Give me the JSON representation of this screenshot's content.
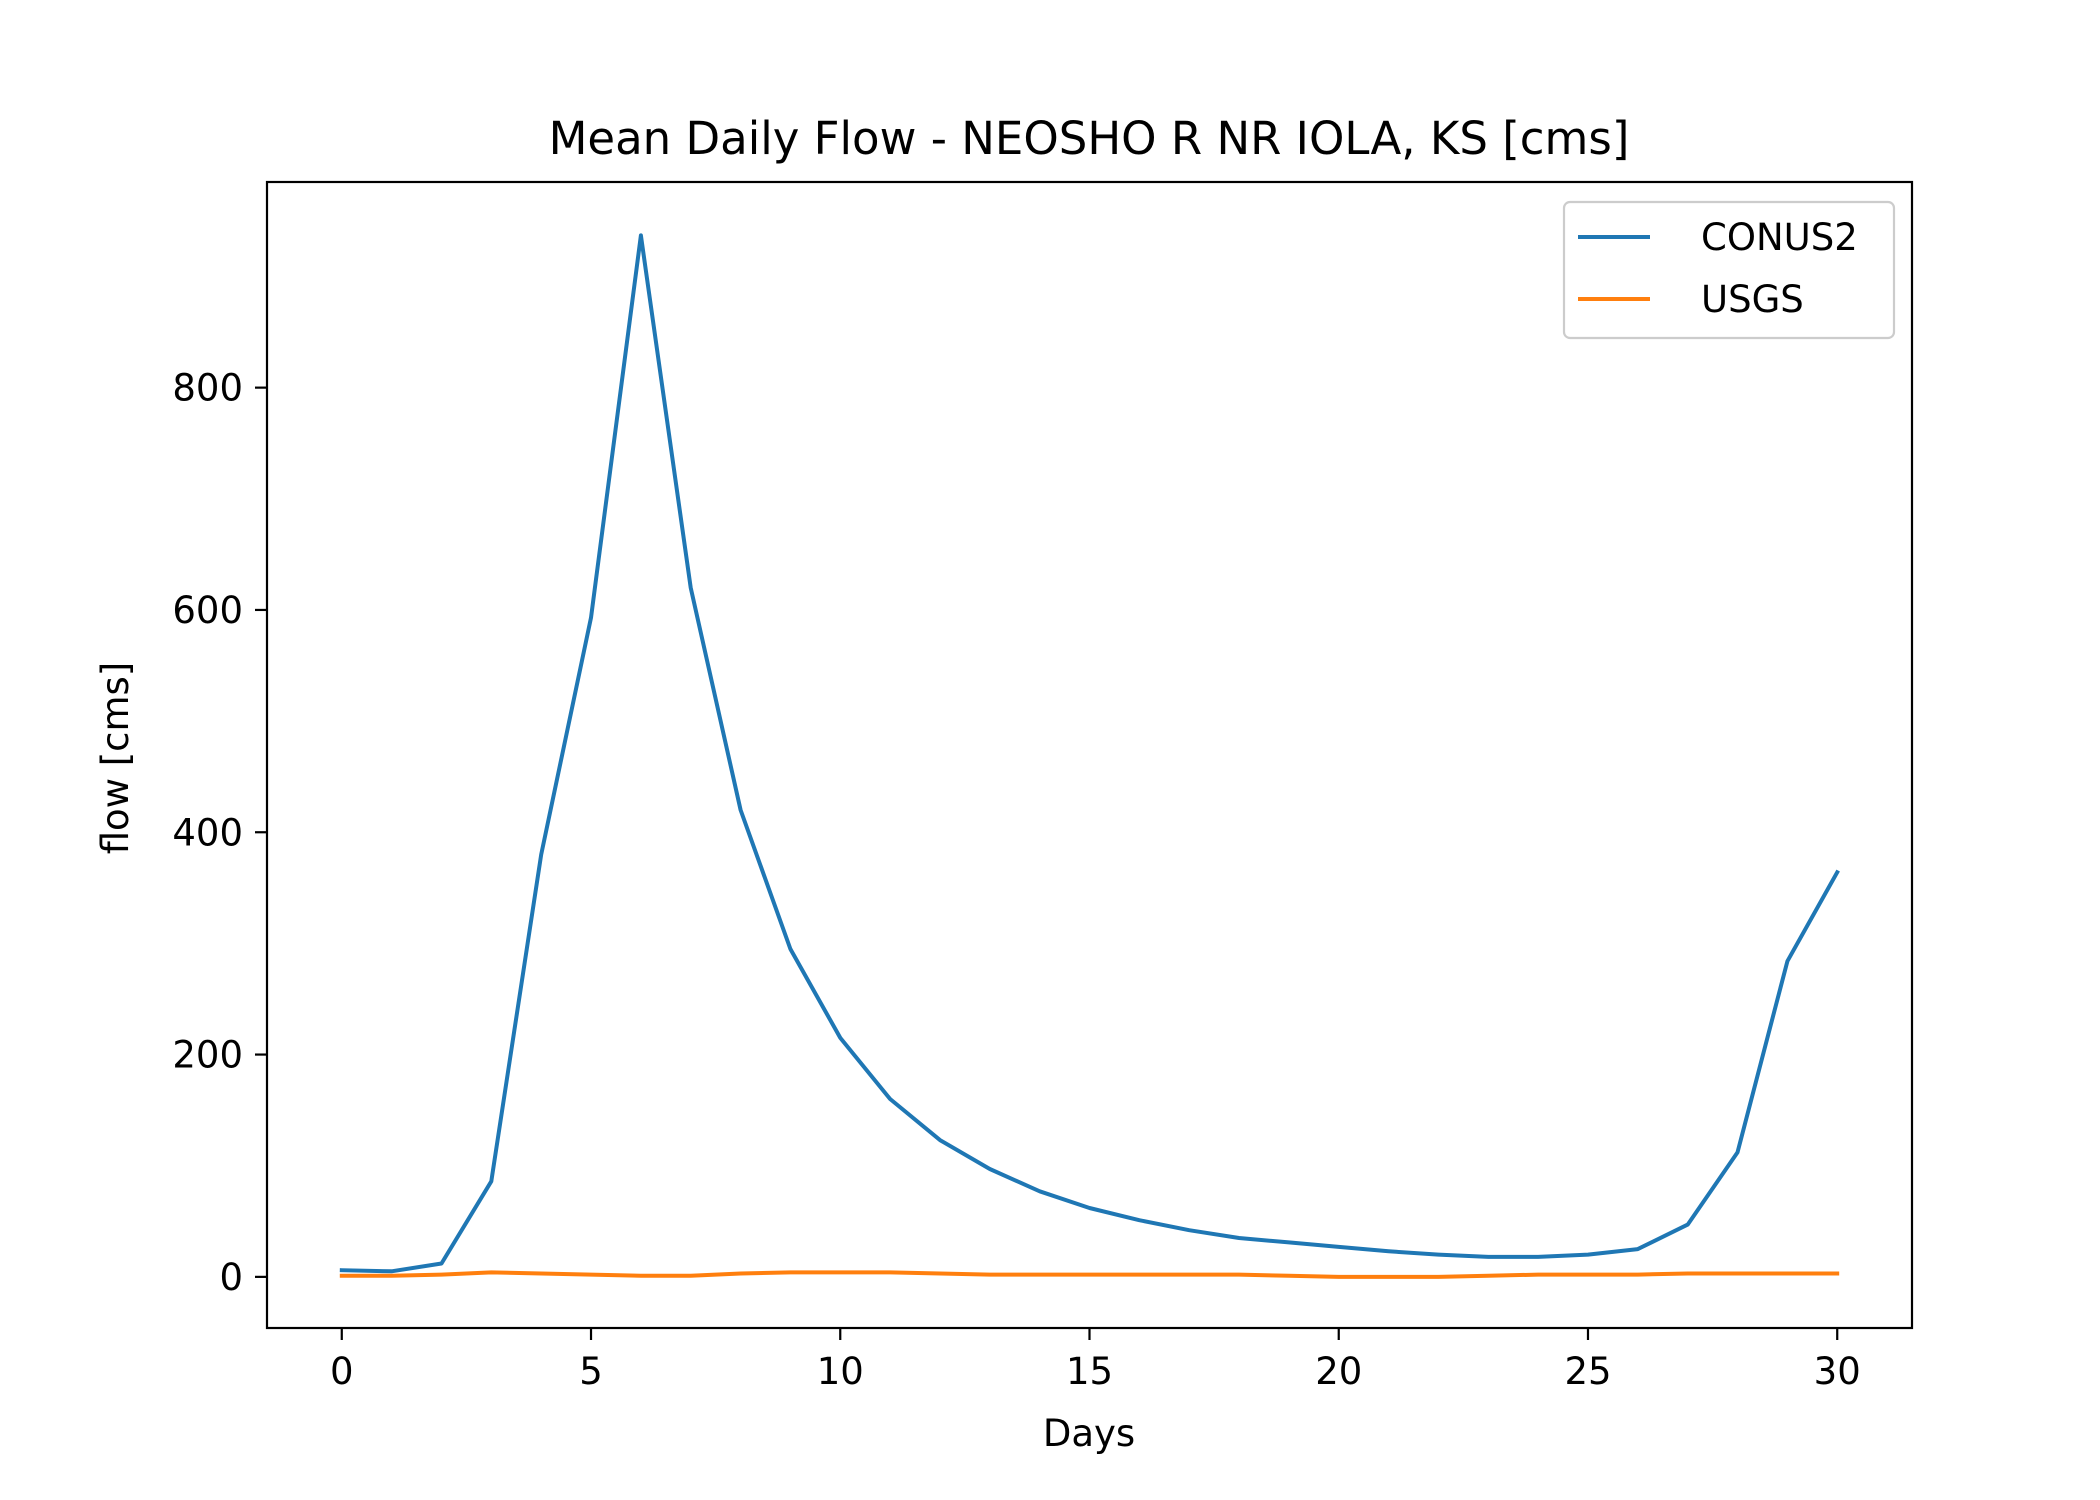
{
  "chart_data": {
    "type": "line",
    "title": "Mean Daily Flow - NEOSHO R NR IOLA, KS [cms]",
    "xlabel": "Days",
    "ylabel": "flow [cms]",
    "xlim": [
      -1.5,
      31.5
    ],
    "ylim": [
      -46,
      985
    ],
    "xticks": [
      0,
      5,
      10,
      15,
      20,
      25,
      30
    ],
    "yticks": [
      0,
      200,
      400,
      600,
      800
    ],
    "grid": false,
    "legend_position": "upper right",
    "x": [
      0,
      1,
      2,
      3,
      4,
      5,
      6,
      7,
      8,
      9,
      10,
      11,
      12,
      13,
      14,
      15,
      16,
      17,
      18,
      19,
      20,
      21,
      22,
      23,
      24,
      25,
      26,
      27,
      28,
      29,
      30
    ],
    "series": [
      {
        "name": "CONUS2",
        "color": "#1f77b4",
        "values": [
          6,
          5,
          12,
          86,
          380,
          593,
          937,
          620,
          420,
          295,
          215,
          160,
          123,
          97,
          77,
          62,
          51,
          42,
          35,
          31,
          27,
          23,
          20,
          18,
          18,
          20,
          25,
          47,
          112,
          284,
          364
        ]
      },
      {
        "name": "USGS",
        "color": "#ff7f0e",
        "values": [
          1,
          1,
          2,
          4,
          3,
          2,
          1,
          1,
          3,
          4,
          4,
          4,
          3,
          2,
          2,
          2,
          2,
          2,
          2,
          1,
          0,
          0,
          0,
          1,
          2,
          2,
          2,
          3,
          3,
          3,
          3
        ]
      }
    ]
  }
}
